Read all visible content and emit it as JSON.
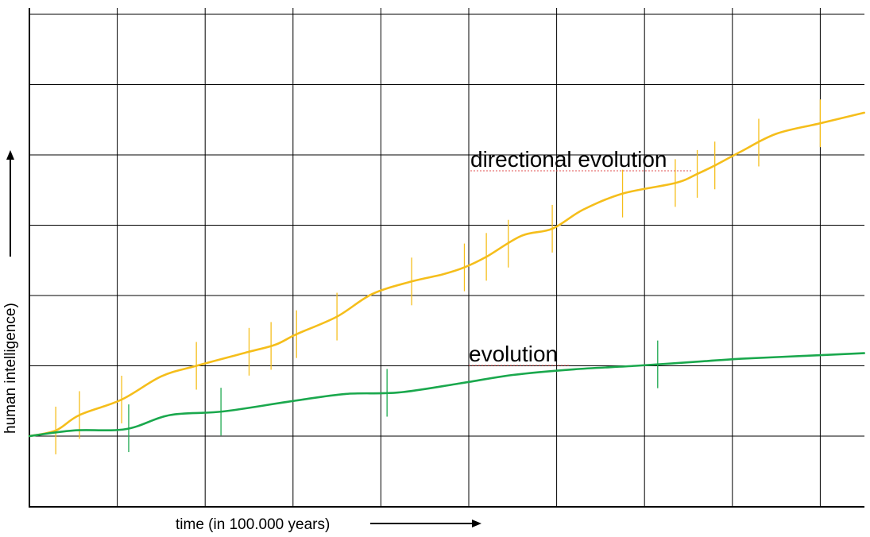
{
  "chart_data": {
    "type": "line",
    "xlabel": "time (in 100.000 years)",
    "ylabel": "human intelligence)",
    "xlim": [
      0,
      9.5
    ],
    "ylim": [
      0,
      7
    ],
    "grid": true,
    "colors": {
      "directional": "#f5be1b",
      "evolution": "#1aa84d",
      "grid": "#000000"
    },
    "series": [
      {
        "name": "directional evolution",
        "x": [
          0,
          0.3,
          0.57,
          1.05,
          1.5,
          1.9,
          2.5,
          2.8,
          3.04,
          3.5,
          3.9,
          4.35,
          4.7,
          4.95,
          5.2,
          5.6,
          5.95,
          6.3,
          6.75,
          7.35,
          7.6,
          7.8,
          8.1,
          8.5,
          9.0,
          9.5
        ],
        "y": [
          0,
          0.08,
          0.3,
          0.52,
          0.85,
          1.0,
          1.2,
          1.3,
          1.45,
          1.7,
          2.02,
          2.2,
          2.3,
          2.4,
          2.55,
          2.85,
          2.95,
          3.22,
          3.45,
          3.6,
          3.73,
          3.85,
          4.05,
          4.3,
          4.45,
          4.6
        ],
        "markers": [
          0.3,
          0.57,
          1.05,
          1.9,
          2.5,
          2.75,
          3.04,
          3.5,
          4.35,
          4.95,
          5.2,
          5.45,
          5.95,
          6.75,
          7.35,
          7.6,
          7.8,
          8.3,
          9.0
        ]
      },
      {
        "name": "evolution",
        "x": [
          0,
          0.5,
          1.1,
          1.6,
          2.2,
          3.0,
          3.6,
          4.2,
          4.9,
          5.5,
          6.2,
          6.9,
          7.5,
          8.1,
          8.8,
          9.5
        ],
        "y": [
          0,
          0.08,
          0.1,
          0.3,
          0.35,
          0.5,
          0.6,
          0.62,
          0.75,
          0.87,
          0.95,
          1.0,
          1.05,
          1.1,
          1.14,
          1.18
        ],
        "markers": [
          1.13,
          2.18,
          4.07,
          7.15
        ]
      }
    ],
    "annotations": [
      "directional evolution",
      "evolution"
    ]
  }
}
